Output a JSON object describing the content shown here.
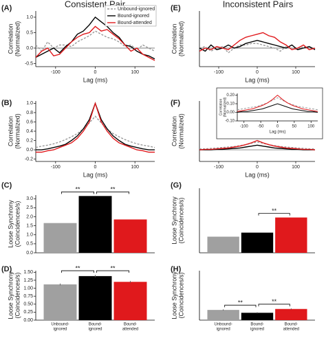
{
  "columns": [
    "Consistent Pair",
    "Inconsistent Pairs"
  ],
  "chart_data": [
    {
      "panel": "(A)",
      "type": "line",
      "xlabel": "Lag (ms)",
      "ylabel": [
        "Correlation",
        "(Normalized)"
      ],
      "xlim": [
        -150,
        150
      ],
      "ylim": [
        -0.6,
        1.2
      ],
      "xticks": [
        -100,
        0,
        100
      ],
      "yticks": [
        -0.5,
        {
          "value": 0,
          "label": "0.0"
        },
        0.5,
        {
          "value": 1,
          "label": "1.0"
        }
      ],
      "zero_line": true,
      "legend": "upper right",
      "x": [
        -150,
        -135,
        -120,
        -105,
        -90,
        -75,
        -60,
        -45,
        -30,
        -15,
        0,
        15,
        30,
        45,
        60,
        75,
        90,
        105,
        120,
        135,
        150
      ],
      "series": [
        {
          "name": "Unbound-ignored",
          "color": "#999999",
          "style": "dashed",
          "values": [
            0.1,
            -0.1,
            0.2,
            0.0,
            0.1,
            0.1,
            0.05,
            0.2,
            0.3,
            0.4,
            0.55,
            0.45,
            0.35,
            0.3,
            0.2,
            0.05,
            0.1,
            -0.05,
            0.1,
            0.0,
            -0.1
          ]
        },
        {
          "name": "Bound-ignored",
          "color": "#000000",
          "style": "solid",
          "values": [
            -0.3,
            -0.2,
            -0.1,
            0.0,
            -0.15,
            0.05,
            0.2,
            0.45,
            0.55,
            0.75,
            1.0,
            0.85,
            0.7,
            0.5,
            0.35,
            0.1,
            0.05,
            -0.1,
            -0.2,
            -0.25,
            -0.35
          ]
        },
        {
          "name": "Bound-attended",
          "color": "#e0191c",
          "style": "solid",
          "values": [
            -0.3,
            -0.1,
            0.0,
            -0.25,
            -0.2,
            0.0,
            0.2,
            0.35,
            0.45,
            0.5,
            0.7,
            0.55,
            0.6,
            0.45,
            0.3,
            0.1,
            -0.1,
            0.0,
            -0.2,
            -0.3,
            -0.4
          ]
        }
      ]
    },
    {
      "panel": "(B)",
      "type": "line",
      "xlabel": "Lag (ms)",
      "ylabel": [
        "Correlation",
        "(Normalized)"
      ],
      "xlim": [
        -150,
        150
      ],
      "ylim": [
        -0.25,
        1.05
      ],
      "xticks": [
        -100,
        0,
        100
      ],
      "yticks": [
        -0.2,
        {
          "value": 0,
          "label": "0.0"
        },
        0.2,
        0.4,
        0.6,
        0.8,
        {
          "value": 1,
          "label": "1.0"
        }
      ],
      "x": [
        -150,
        -135,
        -120,
        -105,
        -90,
        -75,
        -60,
        -45,
        -30,
        -15,
        0,
        15,
        30,
        45,
        60,
        75,
        90,
        105,
        120,
        135,
        150
      ],
      "series": [
        {
          "color": "#999999",
          "style": "dashed",
          "values": [
            0.05,
            0.08,
            0.1,
            0.13,
            0.17,
            0.22,
            0.28,
            0.35,
            0.45,
            0.58,
            0.72,
            0.58,
            0.45,
            0.35,
            0.28,
            0.22,
            0.17,
            0.13,
            0.1,
            0.08,
            0.05
          ]
        },
        {
          "color": "#000000",
          "style": "solid",
          "values": [
            0.0,
            0.0,
            0.02,
            0.05,
            0.08,
            0.12,
            0.2,
            0.3,
            0.45,
            0.65,
            1.0,
            0.65,
            0.45,
            0.3,
            0.2,
            0.12,
            0.08,
            0.05,
            0.02,
            0.0,
            0.0
          ]
        },
        {
          "color": "#e0191c",
          "style": "solid",
          "values": [
            -0.05,
            -0.05,
            -0.02,
            0.0,
            0.05,
            0.1,
            0.15,
            0.25,
            0.4,
            0.6,
            1.0,
            0.6,
            0.4,
            0.25,
            0.15,
            0.1,
            0.05,
            0.0,
            -0.02,
            -0.05,
            -0.05
          ]
        }
      ]
    },
    {
      "panel": "(C)",
      "type": "bar",
      "ylabel": [
        "Loose Synchrony",
        "(Coincidences/s)"
      ],
      "ylim": [
        0,
        3.2
      ],
      "yticks": [
        {
          "value": 0,
          "label": "0.0"
        },
        0.5,
        {
          "value": 1,
          "label": "1.0"
        },
        1.5,
        {
          "value": 2,
          "label": "2.0"
        },
        2.5,
        {
          "value": 3,
          "label": "3.0"
        }
      ],
      "categories": [
        null,
        null,
        null
      ],
      "colors": [
        "#a0a0a0",
        "#000000",
        "#e0191c"
      ],
      "values": [
        1.65,
        3.15,
        1.85
      ],
      "annotations": [
        "**",
        "**"
      ]
    },
    {
      "panel": "(D)",
      "type": "bar",
      "ylabel": [
        "Loose Synchrony",
        "(Coincidences/s)"
      ],
      "ylim": [
        0,
        1.55
      ],
      "yticks": [
        {
          "value": 0,
          "label": "0.00"
        },
        0.25,
        {
          "value": 0.5,
          "label": "0.50"
        },
        0.75,
        {
          "value": 1,
          "label": "1.00"
        },
        1.25,
        {
          "value": 1.5,
          "label": "1.50"
        }
      ],
      "categories": [
        [
          "Unbound-",
          "ignored"
        ],
        [
          "Bound-",
          "ignored"
        ],
        [
          "Bound-",
          "attended"
        ]
      ],
      "colors": [
        "#a0a0a0",
        "#000000",
        "#e0191c"
      ],
      "values": [
        1.12,
        1.38,
        1.2
      ],
      "errors": [
        0.03,
        0.04,
        0.03
      ],
      "annotations": [
        "**",
        "**"
      ]
    },
    {
      "panel": "(E)",
      "type": "line",
      "xlabel": "Lag (ms)",
      "ylabel": [
        "Correlation",
        "(Normalized)"
      ],
      "xlim": [
        -150,
        150
      ],
      "ylim": [
        -0.6,
        1.2
      ],
      "xticks": [
        -100,
        0,
        100
      ],
      "zero_line": true,
      "x": [
        -150,
        -135,
        -120,
        -105,
        -90,
        -75,
        -60,
        -45,
        -30,
        -15,
        0,
        15,
        30,
        45,
        60,
        75,
        90,
        105,
        120,
        135,
        150
      ],
      "series": [
        {
          "color": "#999999",
          "style": "dashed",
          "values": [
            0.0,
            0.05,
            -0.1,
            0.0,
            0.05,
            -0.15,
            0.0,
            0.1,
            0.1,
            0.15,
            0.15,
            0.1,
            0.05,
            0.0,
            -0.1,
            0.05,
            0.0,
            -0.05,
            0.05,
            0.0,
            -0.05
          ]
        },
        {
          "color": "#000000",
          "style": "solid",
          "values": [
            0.0,
            -0.1,
            0.1,
            -0.05,
            0.0,
            0.1,
            0.0,
            0.05,
            0.15,
            0.2,
            0.25,
            0.2,
            0.15,
            0.1,
            0.05,
            0.0,
            0.1,
            -0.05,
            0.0,
            0.05,
            -0.05
          ]
        },
        {
          "color": "#e0191c",
          "style": "solid",
          "values": [
            -0.1,
            0.0,
            -0.05,
            0.05,
            0.0,
            -0.05,
            0.1,
            0.25,
            0.35,
            0.4,
            0.45,
            0.5,
            0.4,
            0.35,
            0.2,
            0.1,
            -0.05,
            0.0,
            0.1,
            -0.05,
            0.0
          ]
        }
      ]
    },
    {
      "panel": "(F)",
      "type": "line",
      "xlabel": "Lag (ms)",
      "ylabel": [
        "Correlation",
        "(Normalized)"
      ],
      "xlim": [
        -150,
        150
      ],
      "ylim": [
        -0.25,
        1.05
      ],
      "xticks": [
        -100,
        0,
        100
      ],
      "zero_line": true,
      "x": [
        -150,
        -135,
        -120,
        -105,
        -90,
        -75,
        -60,
        -45,
        -30,
        -15,
        0,
        15,
        30,
        45,
        60,
        75,
        90,
        105,
        120,
        135,
        150
      ],
      "series": [
        {
          "color": "#999999",
          "style": "dashed",
          "values": [
            0.02,
            0.02,
            0.03,
            0.04,
            0.05,
            0.06,
            0.07,
            0.09,
            0.11,
            0.14,
            0.17,
            0.14,
            0.11,
            0.09,
            0.07,
            0.06,
            0.05,
            0.04,
            0.03,
            0.02,
            0.02
          ]
        },
        {
          "color": "#000000",
          "style": "solid",
          "values": [
            0.0,
            0.0,
            0.0,
            0.01,
            0.01,
            0.02,
            0.03,
            0.04,
            0.06,
            0.08,
            0.1,
            0.08,
            0.06,
            0.04,
            0.03,
            0.02,
            0.01,
            0.01,
            0.0,
            0.0,
            0.0
          ]
        },
        {
          "color": "#e0191c",
          "style": "solid",
          "values": [
            0.0,
            0.01,
            0.01,
            0.02,
            0.03,
            0.04,
            0.06,
            0.08,
            0.11,
            0.15,
            0.2,
            0.15,
            0.11,
            0.08,
            0.06,
            0.04,
            0.03,
            0.02,
            0.01,
            0.01,
            0.0
          ]
        }
      ]
    },
    {
      "type": "line",
      "inset": true,
      "xlabel": "Lag (ms)",
      "ylabel": [
        "Correlation",
        "(Normalized)"
      ],
      "xlim": [
        -120,
        120
      ],
      "ylim": [
        -0.1,
        0.22
      ],
      "xticks": [
        -100,
        -50,
        0,
        50,
        100
      ],
      "yticks": [
        {
          "value": -0.1,
          "label": "-0.10"
        },
        {
          "value": 0,
          "label": "0.00"
        },
        {
          "value": 0.1,
          "label": "0.10"
        },
        {
          "value": 0.2,
          "label": "0.20"
        }
      ],
      "zero_line": true,
      "x": [
        -120,
        -105,
        -90,
        -75,
        -60,
        -45,
        -30,
        -15,
        0,
        15,
        30,
        45,
        60,
        75,
        90,
        105,
        120
      ],
      "series": [
        {
          "color": "#999999",
          "style": "dashed",
          "values": [
            0.03,
            0.04,
            0.05,
            0.06,
            0.07,
            0.09,
            0.11,
            0.14,
            0.17,
            0.14,
            0.11,
            0.09,
            0.07,
            0.06,
            0.05,
            0.04,
            0.03
          ]
        },
        {
          "color": "#000000",
          "style": "solid",
          "values": [
            0.0,
            0.01,
            0.01,
            0.02,
            0.03,
            0.04,
            0.06,
            0.08,
            0.1,
            0.08,
            0.06,
            0.04,
            0.03,
            0.02,
            0.01,
            0.01,
            0.0
          ]
        },
        {
          "color": "#e0191c",
          "style": "solid",
          "values": [
            0.01,
            0.02,
            0.03,
            0.04,
            0.06,
            0.08,
            0.11,
            0.15,
            0.2,
            0.15,
            0.11,
            0.08,
            0.06,
            0.04,
            0.03,
            0.02,
            0.01
          ]
        }
      ]
    },
    {
      "panel": "(G)",
      "type": "bar",
      "ylabel": [
        "Loose Synchrony",
        "(Coincidences/s)"
      ],
      "ylim": [
        0,
        3.2
      ],
      "categories": [
        null,
        null,
        null
      ],
      "colors": [
        "#a0a0a0",
        "#000000",
        "#e0191c"
      ],
      "values": [
        0.8,
        1.0,
        1.75
      ],
      "annotations": [
        "**"
      ]
    },
    {
      "panel": "(H)",
      "type": "bar",
      "ylabel": [
        "Loose Synchrony",
        "(Coincidences/s)"
      ],
      "ylim": [
        0,
        1.55
      ],
      "categories": [
        [
          "Unbound-",
          "ignored"
        ],
        [
          "Bound-",
          "ignored"
        ],
        [
          "Bound-",
          "attended"
        ]
      ],
      "colors": [
        "#a0a0a0",
        "#000000",
        "#e0191c"
      ],
      "values": [
        0.32,
        0.23,
        0.35
      ],
      "errors": [
        0.02,
        0.02,
        0.02
      ],
      "annotations": [
        "**",
        "**"
      ]
    }
  ]
}
